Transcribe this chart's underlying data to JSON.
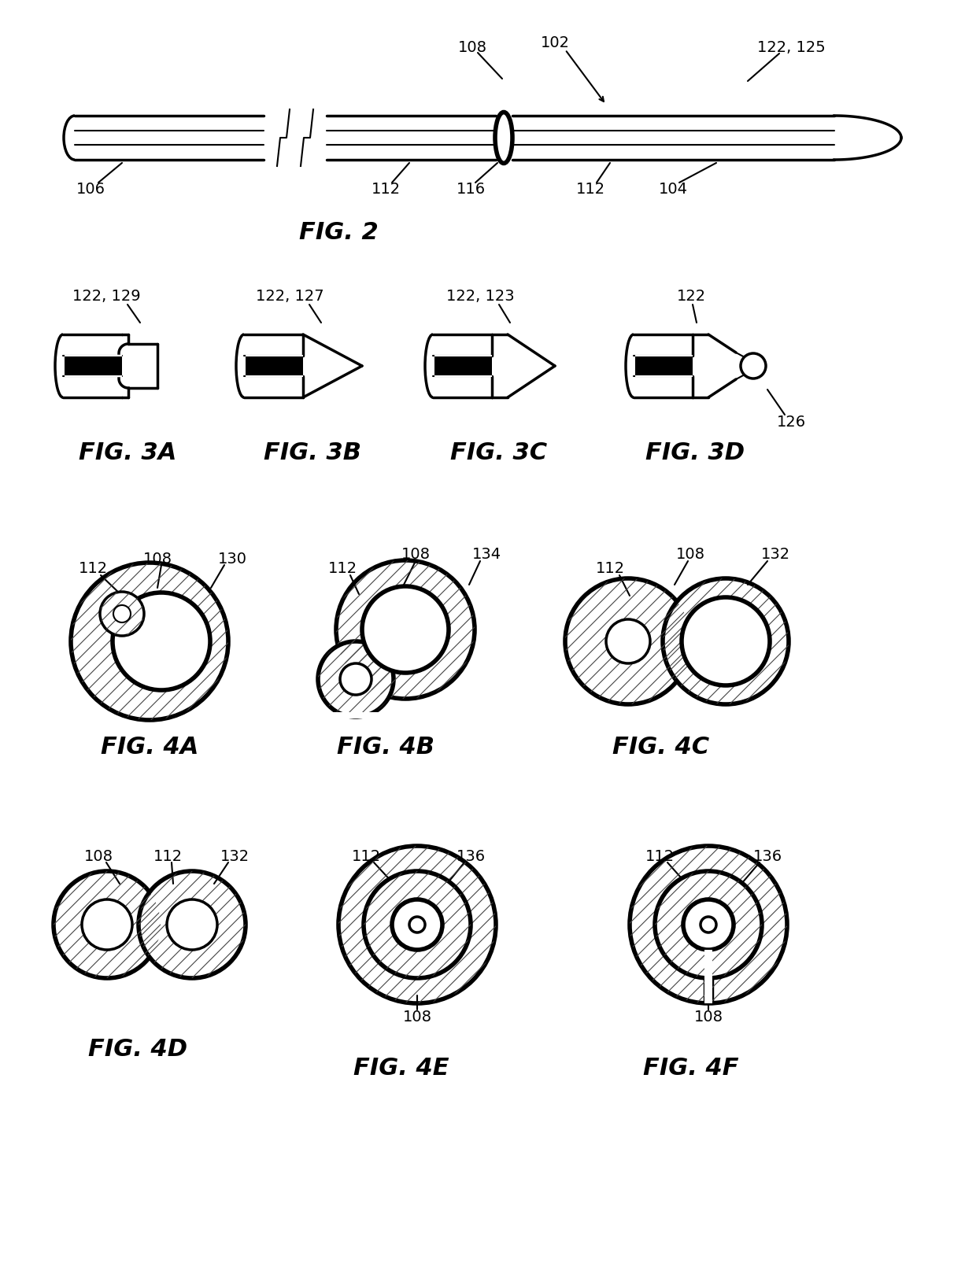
{
  "bg_color": "#ffffff",
  "line_color": "#000000",
  "fig_labels": {
    "fig2": "FIG. 2",
    "fig3a": "FIG. 3A",
    "fig3b": "FIG. 3B",
    "fig3c": "FIG. 3C",
    "fig3d": "FIG. 3D",
    "fig4a": "FIG. 4A",
    "fig4b": "FIG. 4B",
    "fig4c": "FIG. 4C",
    "fig4d": "FIG. 4D",
    "fig4e": "FIG. 4E",
    "fig4f": "FIG. 4F"
  },
  "font_size_refs": 14,
  "font_size_fig": 22
}
